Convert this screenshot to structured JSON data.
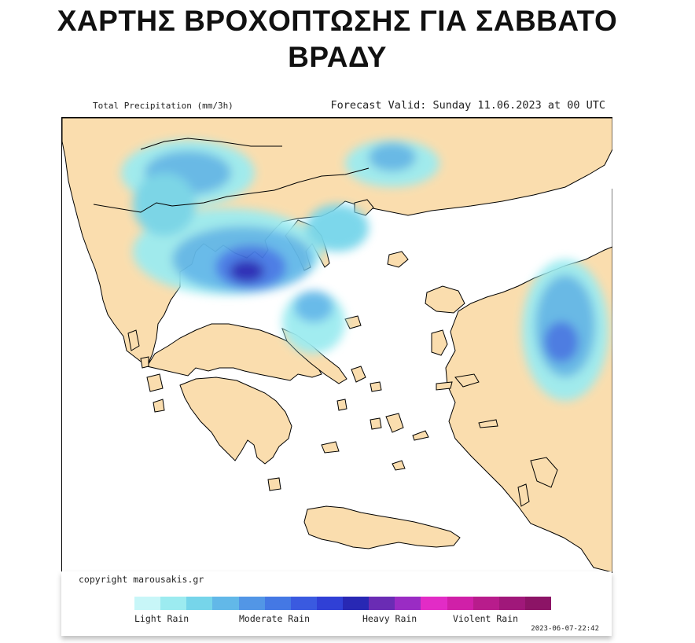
{
  "title": {
    "line1": "ΧΑΡΤΗΣ ΒΡΟΧΟΠΤΩΣΗΣ ΓΙΑ ΣΑΒΒΑΤΟ",
    "line2": "ΒΡΑΔΥ"
  },
  "map": {
    "header_left": "Total Precipitation (mm/3h)",
    "header_right": "Forecast Valid:  Sunday 11.06.2023 at 00 UTC",
    "land_color": "#FADDAE",
    "sea_color": "#FFFFFF"
  },
  "footer": {
    "copyright": "copyright marousakis.gr",
    "stamp": "2023-06-07-22:42"
  },
  "legend": {
    "labels": {
      "light": "Light Rain",
      "moderate": "Moderate Rain",
      "heavy": "Heavy Rain",
      "violent": "Violent Rain"
    },
    "colors": [
      "#C8F6F8",
      "#9CEBF0",
      "#76D5EA",
      "#62B8E8",
      "#5296E6",
      "#4478E4",
      "#3A5AE0",
      "#3040D6",
      "#2828B4",
      "#6A2CB4",
      "#9A2CC4",
      "#E22CC6",
      "#D020A8",
      "#B81C8C",
      "#A0187A",
      "#8C1466"
    ]
  }
}
